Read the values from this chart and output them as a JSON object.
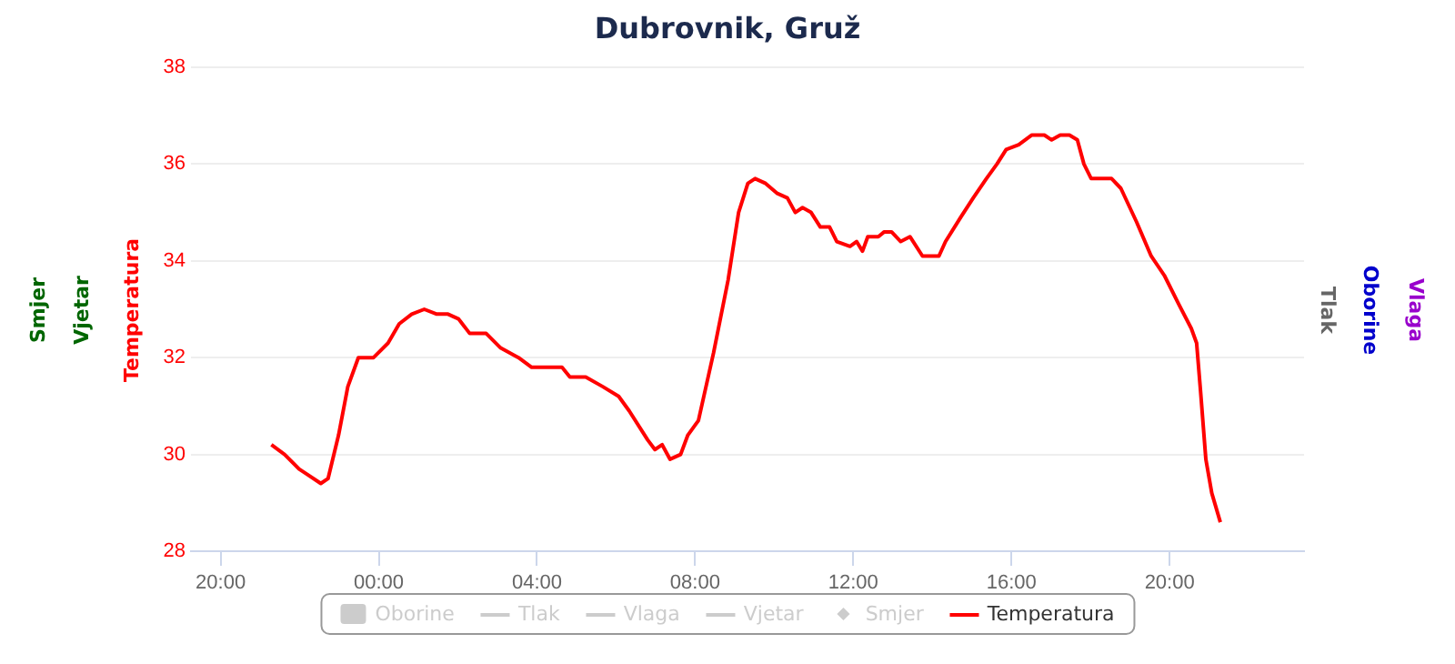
{
  "chart_data": {
    "type": "line",
    "title": "Dubrovnik, Gruž",
    "ylabel": "Temperatura",
    "annotations": [
      "Smjer",
      "Vjetar",
      "Tlak",
      "Oborine",
      "Vlaga"
    ],
    "xlim": [
      "--07-01T19:15",
      "--07-02T23:24"
    ],
    "xticks": [
      {
        "value": "--07-01T20:00",
        "label": "20:00"
      },
      {
        "value": "--07-02T00:00",
        "label": "00:00"
      },
      {
        "value": "--07-02T04:00",
        "label": "04:00"
      },
      {
        "value": "--07-02T08:00",
        "label": "08:00"
      },
      {
        "value": "--07-02T12:00",
        "label": "12:00"
      },
      {
        "value": "--07-02T16:00",
        "label": "16:00"
      },
      {
        "value": "--07-02T20:00",
        "label": "20:00"
      }
    ],
    "ylim": [
      28,
      38
    ],
    "yticks": [
      28,
      30,
      32,
      34,
      36,
      38
    ],
    "grid": "y",
    "legend": "bottom",
    "marker": "none",
    "series": [
      {
        "name": "Oborine",
        "type": "bar",
        "color": "#cccccc"
      },
      {
        "name": "Tlak",
        "type": "line",
        "color": "#cccccc"
      },
      {
        "name": "Vlaga",
        "type": "line",
        "color": "#cccccc"
      },
      {
        "name": "Vjetar",
        "type": "line",
        "color": "#cccccc"
      },
      {
        "name": "Smjer",
        "type": "scatter",
        "color": "#cccccc"
      },
      {
        "name": "Temperatura",
        "color": "#ff0000",
        "x": [
          "--07-01T21:17",
          "--07-01T21:37",
          "--07-01T21:59",
          "--07-01T22:10",
          "--07-01T22:32",
          "--07-01T22:43",
          "--07-01T22:59",
          "--07-01T23:13",
          "--07-01T23:29",
          "--07-01T23:52",
          "--07-02T00:14",
          "--07-02T00:31",
          "--07-02T00:50",
          "--07-02T01:09",
          "--07-02T01:28",
          "--07-02T01:45",
          "--07-02T02:01",
          "--07-02T02:18",
          "--07-02T02:43",
          "--07-02T03:05",
          "--07-02T03:32",
          "--07-02T03:52",
          "--07-02T04:38",
          "--07-02T04:50",
          "--07-02T05:14",
          "--07-02T05:40",
          "--07-02T06:04",
          "--07-02T06:20",
          "--07-02T06:48",
          "--07-02T06:59",
          "--07-02T07:10",
          "--07-02T07:22",
          "--07-02T07:38",
          "--07-02T07:49",
          "--07-02T08:05",
          "--07-02T08:28",
          "--07-02T08:50",
          "--07-02T09:06",
          "--07-02T09:20",
          "--07-02T09:31",
          "--07-02T09:47",
          "--07-02T10:04",
          "--07-02T10:20",
          "--07-02T10:32",
          "--07-02T10:43",
          "--07-02T10:56",
          "--07-02T11:10",
          "--07-02T11:24",
          "--07-02T11:35",
          "--07-02T11:55",
          "--07-02T12:05",
          "--07-02T12:14",
          "--07-02T12:22",
          "--07-02T12:38",
          "--07-02T12:47",
          "--07-02T12:58",
          "--07-02T13:12",
          "--07-02T13:26",
          "--07-02T13:45",
          "--07-02T14:10",
          "--07-02T14:20",
          "--07-02T14:43",
          "--07-02T15:02",
          "--07-02T15:22",
          "--07-02T15:38",
          "--07-02T15:52",
          "--07-02T16:11",
          "--07-02T16:31",
          "--07-02T16:50",
          "--07-02T17:01",
          "--07-02T17:14",
          "--07-02T17:28",
          "--07-02T17:40",
          "--07-02T17:50",
          "--07-02T18:01",
          "--07-02T18:32",
          "--07-02T18:46",
          "--07-02T19:10",
          "--07-02T19:32",
          "--07-02T19:52",
          "--07-02T20:14",
          "--07-02T20:33",
          "--07-02T20:41",
          "--07-02T20:47",
          "--07-02T20:55",
          "--07-02T21:04",
          "--07-02T21:17"
        ],
        "values": [
          30.2,
          30.0,
          29.7,
          29.6,
          29.4,
          29.5,
          30.4,
          31.4,
          32.0,
          32.0,
          32.3,
          32.7,
          32.9,
          33.0,
          32.9,
          32.9,
          32.8,
          32.5,
          32.5,
          32.2,
          32.0,
          31.8,
          31.8,
          31.6,
          31.6,
          31.4,
          31.2,
          30.9,
          30.3,
          30.1,
          30.2,
          29.9,
          30.0,
          30.4,
          30.7,
          32.1,
          33.6,
          35.0,
          35.6,
          35.7,
          35.6,
          35.4,
          35.3,
          35.0,
          35.1,
          35.0,
          34.7,
          34.7,
          34.4,
          34.3,
          34.4,
          34.2,
          34.5,
          34.5,
          34.6,
          34.6,
          34.4,
          34.5,
          34.1,
          34.1,
          34.4,
          34.9,
          35.3,
          35.7,
          36.0,
          36.3,
          36.4,
          36.6,
          36.6,
          36.5,
          36.6,
          36.6,
          36.5,
          36.0,
          35.7,
          35.7,
          35.5,
          34.8,
          34.1,
          33.7,
          33.1,
          32.6,
          32.3,
          31.3,
          29.9,
          29.2,
          28.6
        ]
      }
    ]
  }
}
